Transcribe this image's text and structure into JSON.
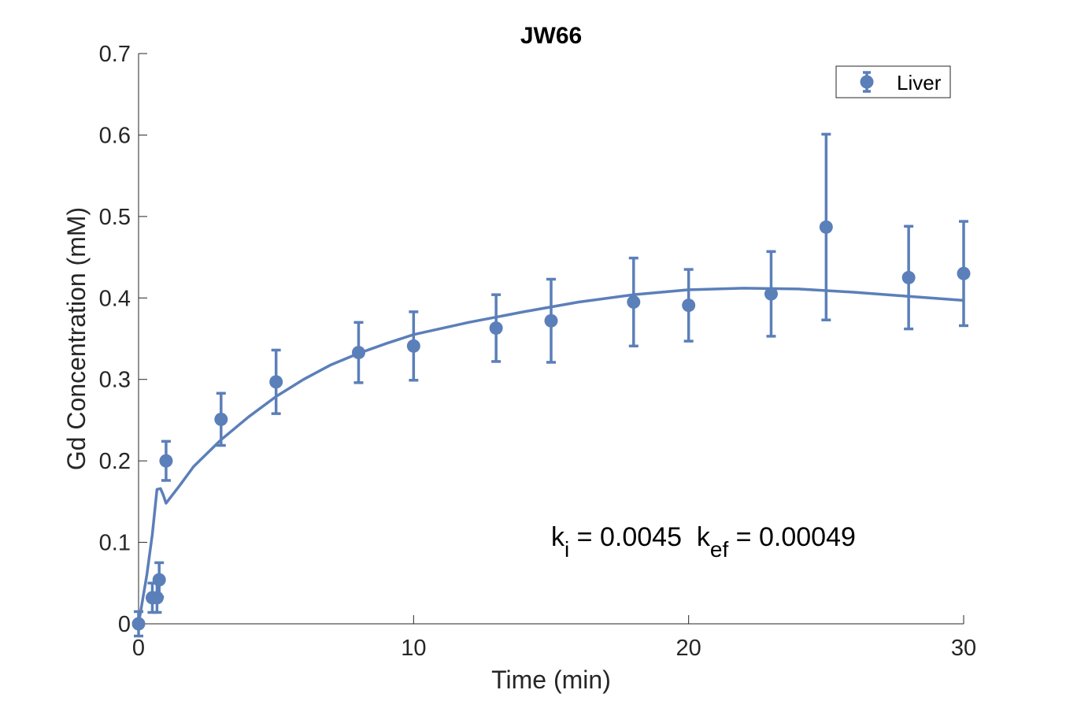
{
  "chart_data": {
    "type": "scatter",
    "title": "JW66",
    "xlabel": "Time (min)",
    "ylabel": "Gd Concentration (mM)",
    "xlim": [
      0,
      30
    ],
    "ylim": [
      0,
      0.7
    ],
    "x_ticks": [
      "0",
      "10",
      "20",
      "30"
    ],
    "y_ticks": [
      "0",
      "0.1",
      "0.2",
      "0.3",
      "0.4",
      "0.5",
      "0.6",
      "0.7"
    ],
    "grid": false,
    "legend_position": "top-right",
    "color": "#5b7fb9",
    "series": [
      {
        "name": "Liver",
        "kind": "errorbar",
        "points": [
          {
            "x": 0.0,
            "y": 0.0,
            "err": 0.015
          },
          {
            "x": 0.5,
            "y": 0.032,
            "err": 0.018
          },
          {
            "x": 0.67,
            "y": 0.032,
            "err": 0.018
          },
          {
            "x": 0.75,
            "y": 0.054,
            "err": 0.021
          },
          {
            "x": 1.0,
            "y": 0.2,
            "err": 0.024
          },
          {
            "x": 3.0,
            "y": 0.251,
            "err": 0.032
          },
          {
            "x": 5.0,
            "y": 0.297,
            "err": 0.039
          },
          {
            "x": 8.0,
            "y": 0.333,
            "err": 0.037
          },
          {
            "x": 10.0,
            "y": 0.341,
            "err": 0.042
          },
          {
            "x": 13.0,
            "y": 0.363,
            "err": 0.041
          },
          {
            "x": 15.0,
            "y": 0.372,
            "err": 0.051
          },
          {
            "x": 18.0,
            "y": 0.395,
            "err": 0.054
          },
          {
            "x": 20.0,
            "y": 0.391,
            "err": 0.044
          },
          {
            "x": 23.0,
            "y": 0.405,
            "err": 0.052
          },
          {
            "x": 25.0,
            "y": 0.487,
            "err": 0.114
          },
          {
            "x": 28.0,
            "y": 0.425,
            "err": 0.063
          },
          {
            "x": 30.0,
            "y": 0.43,
            "err": 0.064
          }
        ]
      },
      {
        "kind": "fit",
        "x": [
          0,
          0.3,
          0.5,
          0.67,
          0.8,
          0.9,
          1.0,
          1.5,
          2,
          3,
          4,
          5,
          6,
          7,
          8,
          9,
          10,
          12,
          14,
          16,
          18,
          20,
          22,
          24,
          26,
          28,
          30
        ],
        "y": [
          0,
          0.06,
          0.11,
          0.165,
          0.166,
          0.158,
          0.148,
          0.17,
          0.193,
          0.226,
          0.254,
          0.279,
          0.3,
          0.318,
          0.332,
          0.344,
          0.355,
          0.37,
          0.383,
          0.395,
          0.404,
          0.41,
          0.412,
          0.411,
          0.407,
          0.402,
          0.397
        ]
      }
    ],
    "annotation": {
      "parts": [
        {
          "text": "k",
          "role": "base"
        },
        {
          "text": "i",
          "role": "sub"
        },
        {
          "text": " = 0.0045  k",
          "role": "base"
        },
        {
          "text": "ef",
          "role": "sub"
        },
        {
          "text": " = 0.00049",
          "role": "base"
        }
      ],
      "anchor": {
        "x": 15.0,
        "y": 0.1
      }
    }
  }
}
